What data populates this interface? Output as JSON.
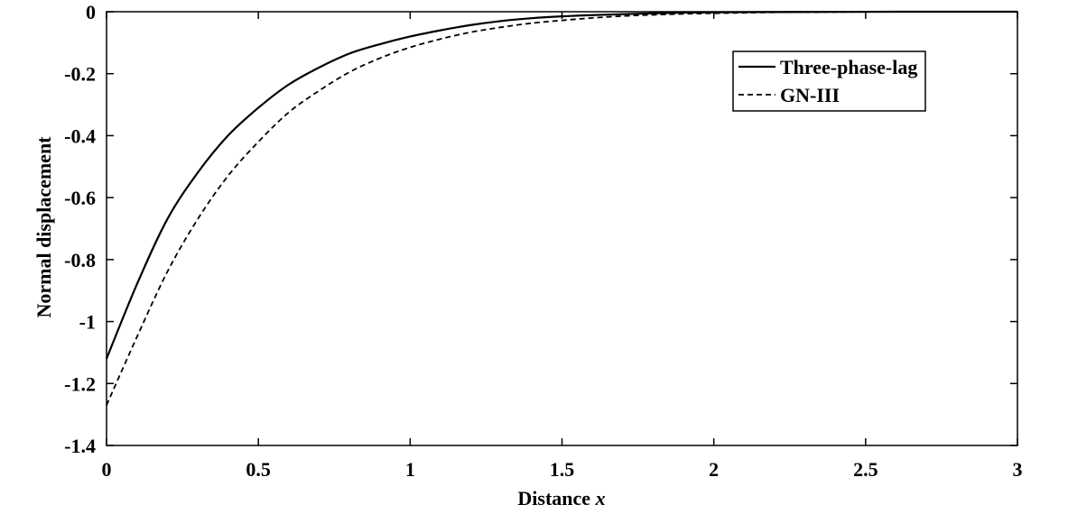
{
  "chart_data": {
    "type": "line",
    "title": "",
    "xlabel_text": "Distance ",
    "xlabel_var": "x",
    "ylabel": "Normal displacement",
    "xlim": [
      0,
      3
    ],
    "ylim": [
      -1.4,
      0
    ],
    "x_ticks": [
      0,
      0.5,
      1,
      1.5,
      2,
      2.5,
      3
    ],
    "x_tick_labels": [
      "0",
      "0.5",
      "1",
      "1.5",
      "2",
      "2.5",
      "3"
    ],
    "y_ticks": [
      0,
      -0.2,
      -0.4,
      -0.6,
      -0.8,
      -1,
      -1.2,
      -1.4
    ],
    "y_tick_labels": [
      "0",
      "-0.2",
      "-0.4",
      "-0.6",
      "-0.8",
      "-1",
      "-1.2",
      "-1.4"
    ],
    "grid": false,
    "legend_position": "top-right",
    "x": [
      0,
      0.1,
      0.2,
      0.3,
      0.4,
      0.5,
      0.6,
      0.7,
      0.8,
      0.9,
      1.0,
      1.1,
      1.2,
      1.3,
      1.4,
      1.5,
      1.6,
      1.7,
      1.8,
      1.9,
      2.0,
      2.2,
      2.4,
      2.6,
      2.8,
      3.0
    ],
    "series": [
      {
        "name": "Three-phase-lag",
        "style": "solid",
        "color": "#000000",
        "values": [
          -1.12,
          -0.88,
          -0.67,
          -0.52,
          -0.4,
          -0.31,
          -0.235,
          -0.18,
          -0.135,
          -0.105,
          -0.08,
          -0.06,
          -0.043,
          -0.03,
          -0.021,
          -0.015,
          -0.011,
          -0.008,
          -0.005,
          -0.003,
          -0.002,
          -0.001,
          -0.0005,
          0,
          0,
          0
        ]
      },
      {
        "name": "GN-III",
        "style": "dashed",
        "color": "#000000",
        "values": [
          -1.27,
          -1.05,
          -0.84,
          -0.67,
          -0.53,
          -0.42,
          -0.325,
          -0.255,
          -0.195,
          -0.15,
          -0.115,
          -0.088,
          -0.066,
          -0.05,
          -0.037,
          -0.028,
          -0.02,
          -0.014,
          -0.01,
          -0.007,
          -0.005,
          -0.002,
          -0.001,
          0,
          0,
          0
        ]
      }
    ]
  }
}
